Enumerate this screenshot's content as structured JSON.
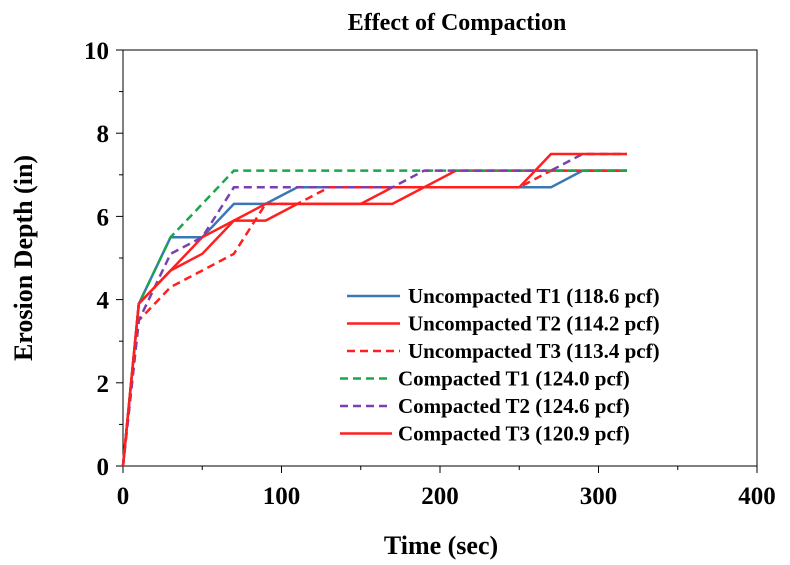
{
  "chart_data": {
    "type": "line",
    "title": "Effect of Compaction",
    "xlabel": "Time (sec)",
    "ylabel": "Erosion Depth (in)",
    "xlim": [
      0,
      400
    ],
    "ylim": [
      0,
      10
    ],
    "xticks": [
      0,
      100,
      200,
      300,
      400
    ],
    "yticks": [
      0,
      2,
      4,
      6,
      8,
      10
    ],
    "x_tick_labels": [
      "0",
      "100",
      "200",
      "300",
      "400"
    ],
    "y_tick_labels": [
      "0",
      "2",
      "4",
      "6",
      "8",
      "10"
    ],
    "grid": false,
    "legend_position": "lower-right",
    "series": [
      {
        "name": "Uncompacted T1 (118.6 pcf)",
        "color": "#3a78b5",
        "dash": "solid",
        "points": [
          [
            0,
            0
          ],
          [
            10,
            3.9
          ],
          [
            30,
            5.5
          ],
          [
            50,
            5.5
          ],
          [
            70,
            6.3
          ],
          [
            90,
            6.3
          ],
          [
            110,
            6.7
          ],
          [
            130,
            6.7
          ],
          [
            150,
            6.7
          ],
          [
            170,
            6.7
          ],
          [
            190,
            6.7
          ],
          [
            210,
            6.7
          ],
          [
            230,
            6.7
          ],
          [
            250,
            6.7
          ],
          [
            270,
            6.7
          ],
          [
            290,
            7.1
          ],
          [
            318,
            7.1
          ]
        ]
      },
      {
        "name": "Uncompacted T2 (114.2 pcf)",
        "color": "#ff1f1f",
        "dash": "solid",
        "points": [
          [
            0,
            0
          ],
          [
            10,
            3.9
          ],
          [
            30,
            4.7
          ],
          [
            50,
            5.5
          ],
          [
            70,
            5.9
          ],
          [
            90,
            6.3
          ],
          [
            110,
            6.3
          ],
          [
            130,
            6.3
          ],
          [
            150,
            6.3
          ],
          [
            170,
            6.7
          ],
          [
            190,
            6.7
          ],
          [
            210,
            7.1
          ],
          [
            230,
            7.1
          ],
          [
            250,
            7.1
          ],
          [
            270,
            7.1
          ],
          [
            290,
            7.1
          ],
          [
            318,
            7.1
          ]
        ]
      },
      {
        "name": "Uncompacted T3 (113.4 pcf)",
        "color": "#ff1f1f",
        "dash": "dashed",
        "points": [
          [
            0,
            0
          ],
          [
            10,
            3.5
          ],
          [
            30,
            4.3
          ],
          [
            50,
            4.7
          ],
          [
            70,
            5.1
          ],
          [
            90,
            6.3
          ],
          [
            110,
            6.3
          ],
          [
            130,
            6.7
          ],
          [
            150,
            6.7
          ],
          [
            170,
            6.7
          ],
          [
            190,
            6.7
          ],
          [
            210,
            6.7
          ],
          [
            230,
            6.7
          ],
          [
            250,
            6.7
          ],
          [
            270,
            7.1
          ],
          [
            290,
            7.1
          ],
          [
            318,
            7.1
          ]
        ]
      },
      {
        "name": "Compacted T1 (124.0 pcf)",
        "color": "#1aa64a",
        "dash": "dashed",
        "points": [
          [
            0,
            0
          ],
          [
            10,
            3.9
          ],
          [
            30,
            5.5
          ],
          [
            50,
            6.3
          ],
          [
            70,
            7.1
          ],
          [
            90,
            7.1
          ],
          [
            110,
            7.1
          ],
          [
            130,
            7.1
          ],
          [
            150,
            7.1
          ],
          [
            170,
            7.1
          ],
          [
            190,
            7.1
          ],
          [
            210,
            7.1
          ],
          [
            230,
            7.1
          ],
          [
            250,
            7.1
          ],
          [
            270,
            7.1
          ],
          [
            290,
            7.1
          ],
          [
            318,
            7.1
          ]
        ]
      },
      {
        "name": "Compacted T2 (124.6 pcf)",
        "color": "#7b3fb0",
        "dash": "dashed",
        "points": [
          [
            0,
            0
          ],
          [
            10,
            3.5
          ],
          [
            30,
            5.1
          ],
          [
            50,
            5.5
          ],
          [
            70,
            6.7
          ],
          [
            90,
            6.7
          ],
          [
            110,
            6.7
          ],
          [
            130,
            6.7
          ],
          [
            150,
            6.7
          ],
          [
            170,
            6.7
          ],
          [
            190,
            7.1
          ],
          [
            210,
            7.1
          ],
          [
            230,
            7.1
          ],
          [
            250,
            7.1
          ],
          [
            270,
            7.1
          ],
          [
            290,
            7.5
          ],
          [
            318,
            7.5
          ]
        ]
      },
      {
        "name": "Compacted T3 (120.9 pcf)",
        "color": "#ff1f1f",
        "dash": "solid",
        "points": [
          [
            0,
            0
          ],
          [
            10,
            3.9
          ],
          [
            30,
            4.7
          ],
          [
            50,
            5.1
          ],
          [
            70,
            5.9
          ],
          [
            90,
            5.9
          ],
          [
            110,
            6.3
          ],
          [
            130,
            6.3
          ],
          [
            150,
            6.3
          ],
          [
            170,
            6.3
          ],
          [
            190,
            6.7
          ],
          [
            210,
            6.7
          ],
          [
            230,
            6.7
          ],
          [
            250,
            6.7
          ],
          [
            270,
            7.5
          ],
          [
            290,
            7.5
          ],
          [
            318,
            7.5
          ]
        ]
      }
    ]
  }
}
